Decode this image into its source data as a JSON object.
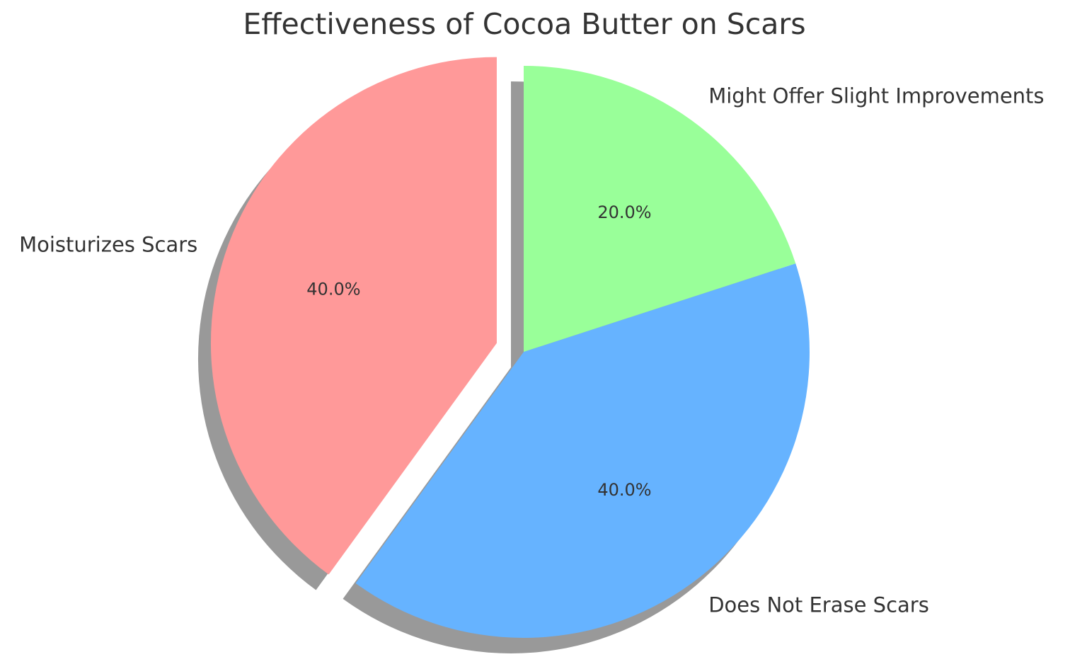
{
  "chart_data": {
    "type": "pie",
    "title": "Effectiveness of Cocoa Butter on Scars",
    "labels": [
      "Moisturizes Scars",
      "Does Not Erase Scars",
      "Might Offer Slight Improvements"
    ],
    "values": [
      40,
      40,
      20
    ],
    "percent_labels": [
      "40.0%",
      "40.0%",
      "20.0%"
    ],
    "colors": [
      "#ff9999",
      "#66b3ff",
      "#99ff99"
    ],
    "exploded": [
      true,
      false,
      false
    ],
    "shadow": true,
    "start": "top",
    "direction": "counterclockwise"
  }
}
